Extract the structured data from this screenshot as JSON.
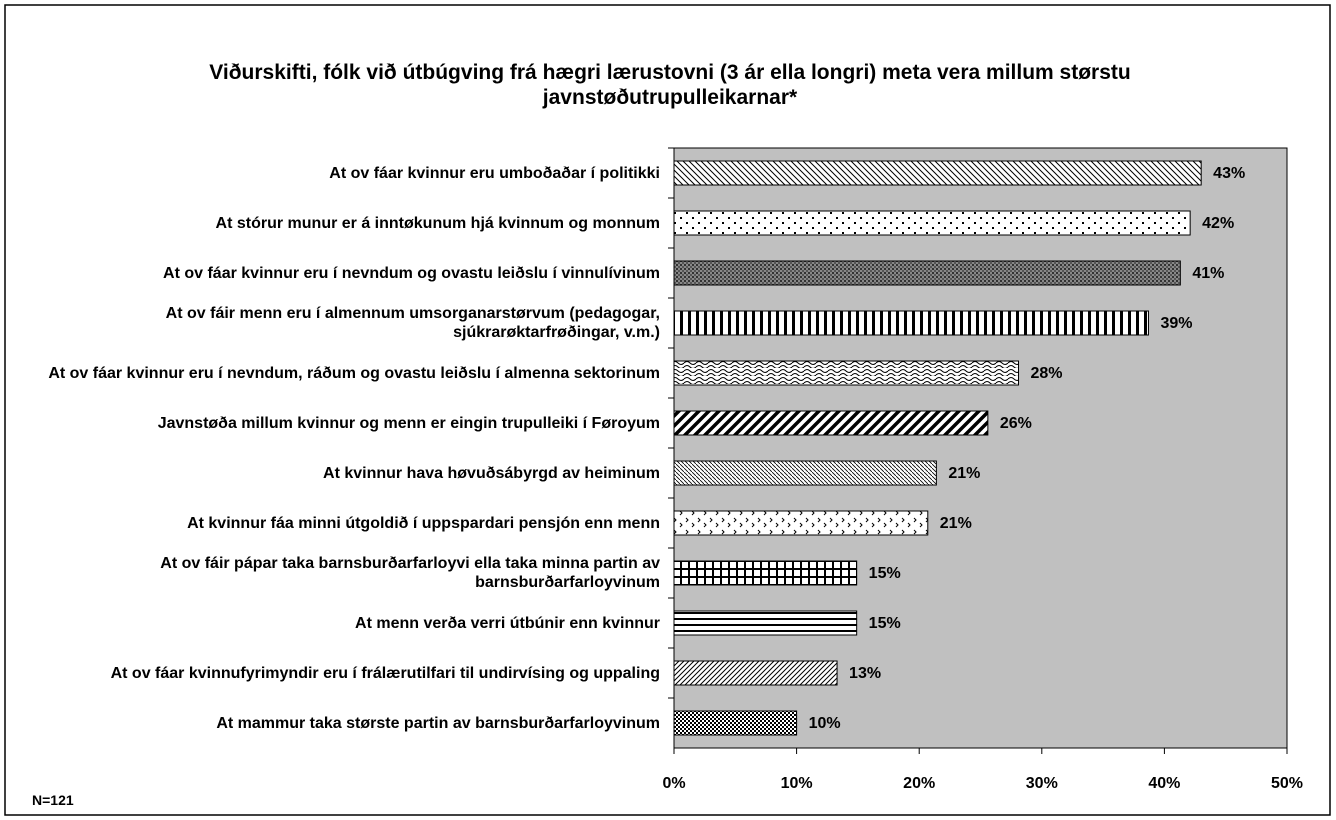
{
  "chart_data": {
    "type": "bar",
    "orientation": "horizontal",
    "title": "Viðurskifti, fólk við útbúgving frá hægri lærustovni (3 ár ella longri) meta vera millum størstu javnstøðutrupulleikarnar*",
    "note": "N=121",
    "categories": [
      "At ov fáar kvinnur eru umboðaðar í politikki",
      "At stórur munur er á inntøkunum hjá kvinnum og monnum",
      "At ov fáar kvinnur eru í nevndum og ovastu leiðslu í vinnulívinum",
      "At ov fáir menn eru í almennum umsorganarstørvum (pedagogar, sjúkrarøktarfrøðingar, v.m.)",
      "At ov fáar kvinnur eru í nevndum, ráðum og ovastu leiðslu í almenna sektorinum",
      "Javnstøða millum kvinnur og menn er eingin trupulleiki í Føroyum",
      "At kvinnur hava høvuðsábyrgd av heiminum",
      "At kvinnur fáa minni útgoldið í uppspardari pensjón enn menn",
      "At ov fáir pápar taka barnsburðarfarloyvi ella taka minna partin av barnsburðarfarloyvinum",
      "At menn verða verri útbúnir enn kvinnur",
      "At ov fáar kvinnufyrimyndir eru í frálærutilfari til undirvísing og uppaling",
      "At mammur taka største partin av barnsburðarfarloyvinum"
    ],
    "values": [
      43,
      42.1,
      41.3,
      38.7,
      28.1,
      25.6,
      21.4,
      20.7,
      14.9,
      14.9,
      13.3,
      10
    ],
    "value_labels": [
      "43%",
      "42%",
      "41%",
      "39%",
      "28%",
      "26%",
      "21%",
      "21%",
      "15%",
      "15%",
      "13%",
      "10%"
    ],
    "xlim": [
      0,
      50
    ],
    "xticks": [
      {
        "value": 0,
        "label": "0%"
      },
      {
        "value": 10,
        "label": "10%"
      },
      {
        "value": 20,
        "label": "20%"
      },
      {
        "value": 30,
        "label": "30%"
      },
      {
        "value": 40,
        "label": "40%"
      },
      {
        "value": 50,
        "label": "50%"
      }
    ],
    "plot_background": "#c0c0c0"
  }
}
